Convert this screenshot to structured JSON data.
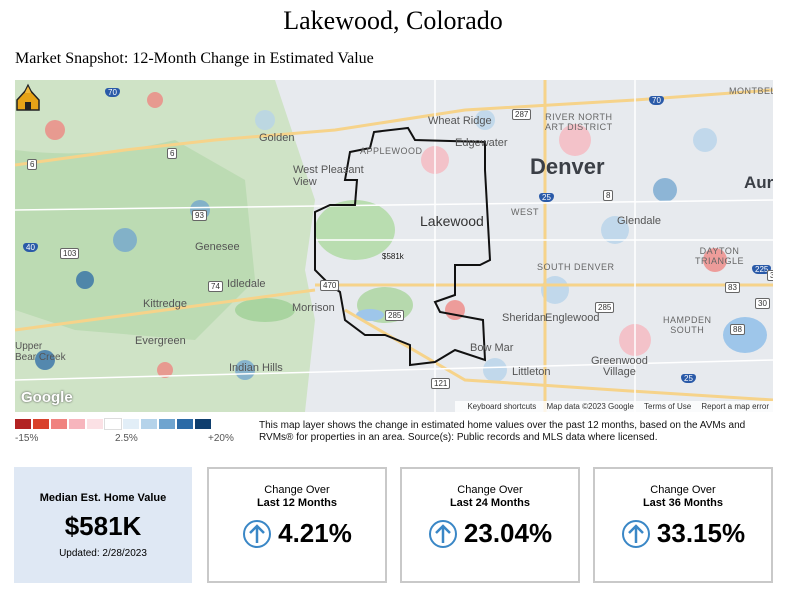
{
  "header": {
    "title": "Lakewood, Colorado",
    "subtitle": "Market Snapshot: 12-Month Change in Estimated Value"
  },
  "map": {
    "labels": {
      "denver": "Denver",
      "lakewood": "Lakewood",
      "golden": "Golden",
      "wheat_ridge": "Wheat Ridge",
      "edgewater": "Edgewater",
      "west_pleasant_view": "West Pleasant\nView",
      "applewood": "APPLEWOOD",
      "genesee": "Genesee",
      "idledale": "Idledale",
      "kittredge": "Kittredge",
      "evergreen": "Evergreen",
      "morrison": "Morrison",
      "indian_hills": "Indian Hills",
      "upper_bear_creek": "Upper\nBear Creek",
      "glendale": "Glendale",
      "south_denver": "SOUTH DENVER",
      "englewood": "Englewood",
      "sheridan": "Sheridan",
      "bow_mar": "Bow Mar",
      "littleton": "Littleton",
      "greenwood_village": "Greenwood\nVillage",
      "aurora": "Auro",
      "montbello": "MONTBELL",
      "river_north": "RIVER NORTH\nART DISTRICT",
      "dayton_triangle": "DAYTON\nTRIANGLE",
      "hampden_south": "HAMPDEN\nSOUTH",
      "west": "WEST"
    },
    "highways": [
      "70",
      "6",
      "6",
      "93",
      "470",
      "285",
      "285",
      "121",
      "25",
      "25",
      "70",
      "225",
      "83",
      "88",
      "287",
      "103",
      "74",
      "40",
      "8",
      "391",
      "30"
    ],
    "marker_label": "$581k",
    "attribution": {
      "google": "Google",
      "shortcuts": "Keyboard shortcuts",
      "data": "Map data ©2023 Google",
      "terms": "Terms of Use",
      "report": "Report a map error"
    }
  },
  "legend": {
    "colors": [
      "#b22222",
      "#d9412b",
      "#f0827f",
      "#f7b5bd",
      "#fbe1e5",
      "#ffffff",
      "#e2eef7",
      "#b5d3ea",
      "#6fa4cf",
      "#2b6aa6",
      "#0f3e6e"
    ],
    "min_label": "-15%",
    "mid_label": "2.5%",
    "max_label": "+20%"
  },
  "description": "This map layer shows the change in estimated home values over the past 12 months, based on the AVMs and RVMs® for properties in an area. Source(s): Public records and MLS data where licensed.",
  "cards": {
    "median": {
      "label": "Median Est. Home Value",
      "value": "$581K",
      "updated": "Updated: 2/28/2023"
    },
    "change": [
      {
        "line1": "Change Over",
        "line2": "Last 12 Months",
        "value": "4.21%",
        "direction": "up"
      },
      {
        "line1": "Change Over",
        "line2": "Last 24 Months",
        "value": "23.04%",
        "direction": "up"
      },
      {
        "line1": "Change Over",
        "line2": "Last 36 Months",
        "value": "33.15%",
        "direction": "up"
      }
    ],
    "accent_color": "#3a87c6"
  }
}
